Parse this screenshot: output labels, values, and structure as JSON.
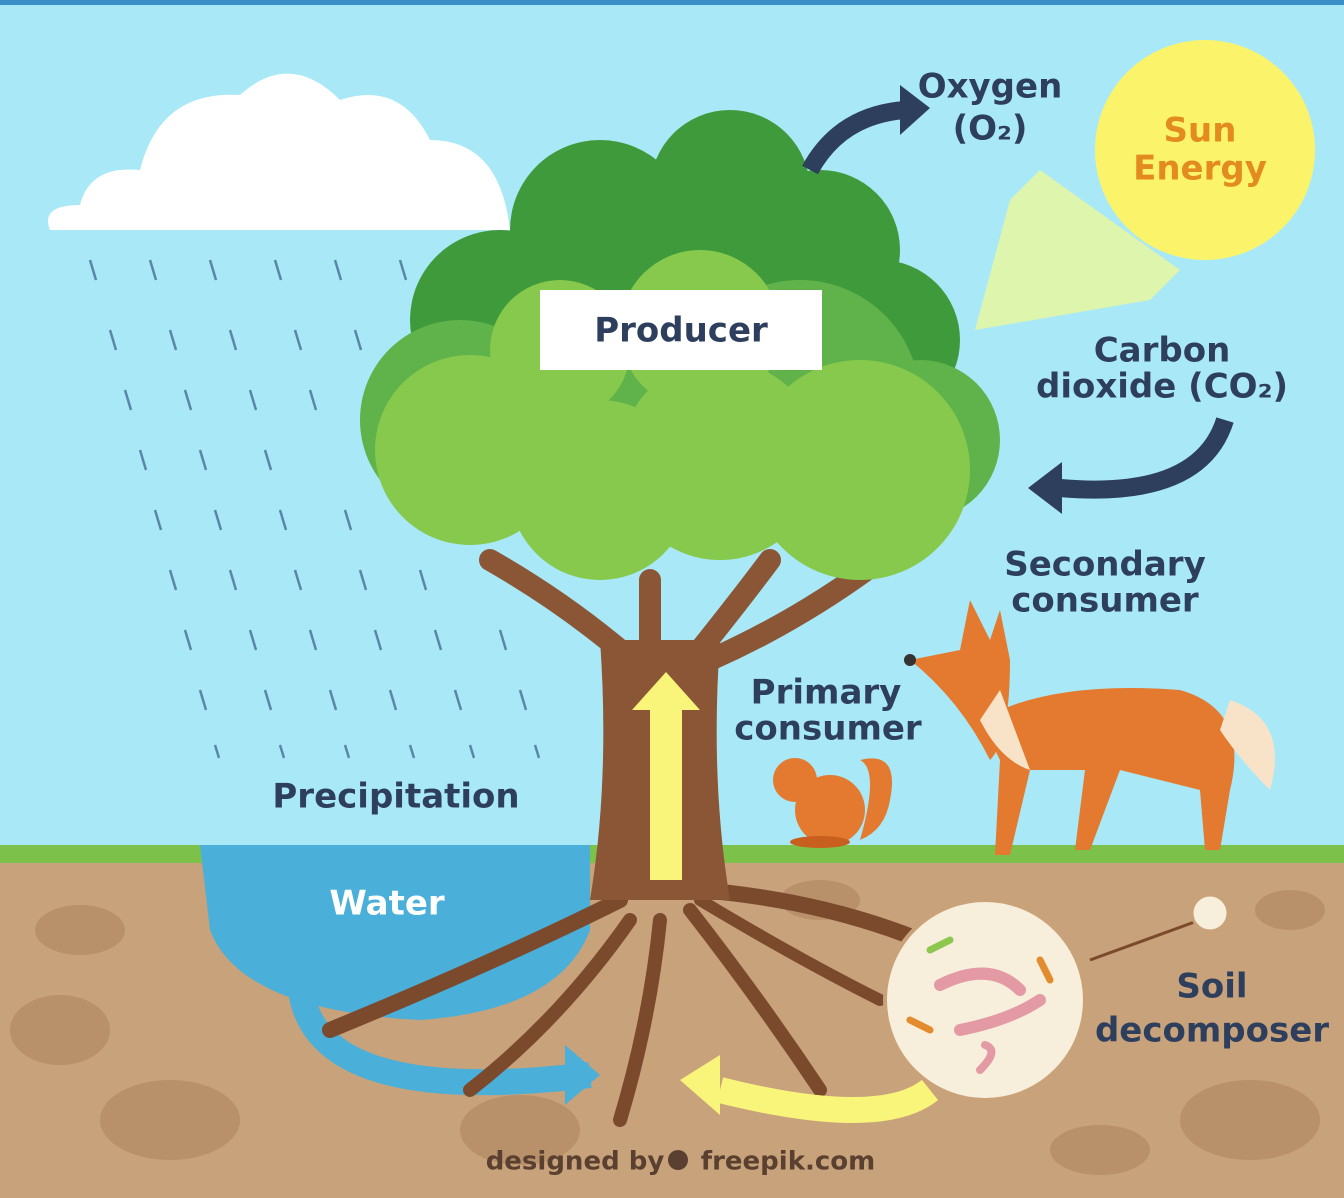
{
  "labels": {
    "oxygen": [
      "Oxygen",
      "(O₂)"
    ],
    "sun": [
      "Sun",
      "Energy"
    ],
    "producer": "Producer",
    "carbon_dioxide": [
      "Carbon",
      "dioxide (CO₂)"
    ],
    "secondary_consumer": [
      "Secondary",
      "consumer"
    ],
    "primary_consumer": [
      "Primary",
      "consumer"
    ],
    "precipitation": "Precipitation",
    "water": "Water",
    "soil_decomposer": [
      "Soil",
      "decomposer"
    ]
  },
  "credit": {
    "prefix": "designed by",
    "site": "freepik.com"
  }
}
